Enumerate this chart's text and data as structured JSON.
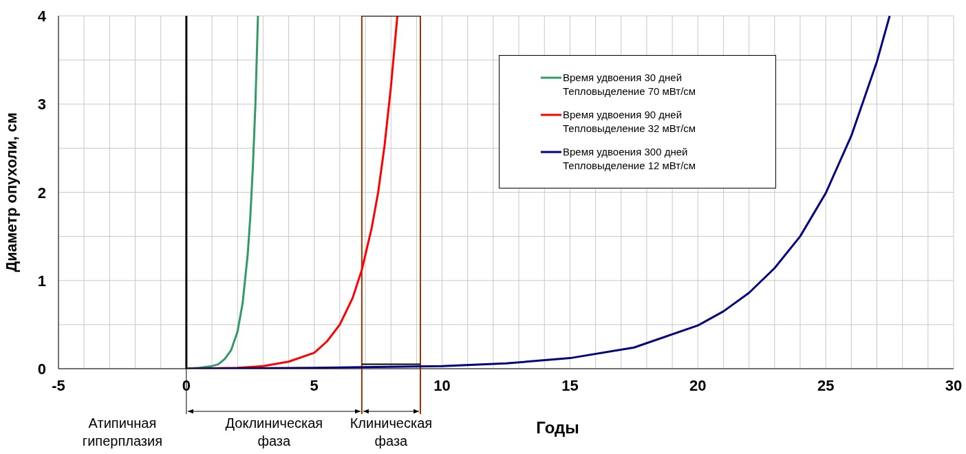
{
  "chart_data": {
    "type": "line",
    "xlabel": "Годы",
    "ylabel": "Диаметр опухоли, см",
    "xlim": [
      -5,
      30
    ],
    "xticks": [
      -5,
      {
        "value": -4,
        "label": null
      },
      {
        "value": -3,
        "label": null
      },
      {
        "value": -2,
        "label": null
      },
      {
        "value": -1,
        "label": null
      },
      0,
      {
        "value": 1,
        "label": null
      },
      {
        "value": 2,
        "label": null
      },
      {
        "value": 3,
        "label": null
      },
      {
        "value": 4,
        "label": null
      },
      5,
      {
        "value": 6,
        "label": null
      },
      {
        "value": 7,
        "label": null
      },
      {
        "value": 8,
        "label": null
      },
      {
        "value": 9,
        "label": null
      },
      10,
      {
        "value": 11,
        "label": null
      },
      {
        "value": 12,
        "label": null
      },
      {
        "value": 13,
        "label": null
      },
      {
        "value": 14,
        "label": null
      },
      15,
      {
        "value": 16,
        "label": null
      },
      {
        "value": 17,
        "label": null
      },
      {
        "value": 18,
        "label": null
      },
      {
        "value": 19,
        "label": null
      },
      20,
      {
        "value": 21,
        "label": null
      },
      {
        "value": 22,
        "label": null
      },
      {
        "value": 23,
        "label": null
      },
      {
        "value": 24,
        "label": null
      },
      25,
      {
        "value": 26,
        "label": null
      },
      {
        "value": 27,
        "label": null
      },
      {
        "value": 28,
        "label": null
      },
      {
        "value": 29,
        "label": null
      },
      30
    ],
    "ylim": [
      0,
      4
    ],
    "yticks": [
      0,
      {
        "value": 0.5,
        "label": null
      },
      1,
      {
        "value": 1.5,
        "label": null
      },
      2,
      {
        "value": 2.5,
        "label": null
      },
      3,
      {
        "value": 3.5,
        "label": null
      },
      4
    ],
    "grid": true,
    "legend": "top right",
    "marker": "none",
    "line_style": "solid",
    "series": [
      {
        "name": "Время удвоения 30 дней\nТепловыделение 70 мВт/см",
        "color": "#339966",
        "x": [
          0,
          0.5,
          1,
          1.25,
          1.5,
          1.75,
          2,
          2.2,
          2.4,
          2.5,
          2.6,
          2.7,
          2.8
        ],
        "values": [
          0,
          0.01,
          0.03,
          0.05,
          0.11,
          0.21,
          0.42,
          0.74,
          1.3,
          1.72,
          2.28,
          3,
          4
        ]
      },
      {
        "name": "Время удвоения 90 дней\nТепловыделение 32 мВт/см",
        "color": "#ff0000",
        "x": [
          0,
          2,
          3,
          4,
          5,
          5.5,
          6,
          6.5,
          6.86,
          7.25,
          7.5,
          7.75,
          8,
          8.25
        ],
        "values": [
          0,
          0.01,
          0.03,
          0.08,
          0.18,
          0.31,
          0.5,
          0.8,
          1.12,
          1.6,
          2,
          2.53,
          3.2,
          4
        ]
      },
      {
        "name": "Время удвоения 300 дней\nТепловыделение 12 мВт/см",
        "color": "#000080",
        "x": [
          0,
          5,
          10,
          12.5,
          15,
          17.5,
          20,
          21,
          22,
          23,
          24,
          25,
          26,
          27,
          27.5
        ],
        "values": [
          0,
          0.01,
          0.03,
          0.06,
          0.12,
          0.24,
          0.49,
          0.65,
          0.86,
          1.14,
          1.5,
          1.99,
          2.64,
          3.48,
          4
        ]
      },
      {
        "color": "#000000",
        "x": [
          6.86,
          9.15
        ],
        "values": [
          4,
          4
        ]
      },
      {
        "color": "#000000",
        "x": [
          6.86,
          9.15
        ],
        "values": [
          0.05,
          0.05
        ]
      }
    ],
    "ref_lines": [
      {
        "axis": "x",
        "value": 0,
        "color": "#000000"
      },
      {
        "axis": "x",
        "value": 6.86,
        "color": "#993300"
      },
      {
        "axis": "x",
        "value": 9.15,
        "color": "#993300"
      }
    ],
    "annotations": [
      "Атипичная гиперплазия",
      "Доклиническая фаза",
      "Клиническая фаза"
    ]
  }
}
